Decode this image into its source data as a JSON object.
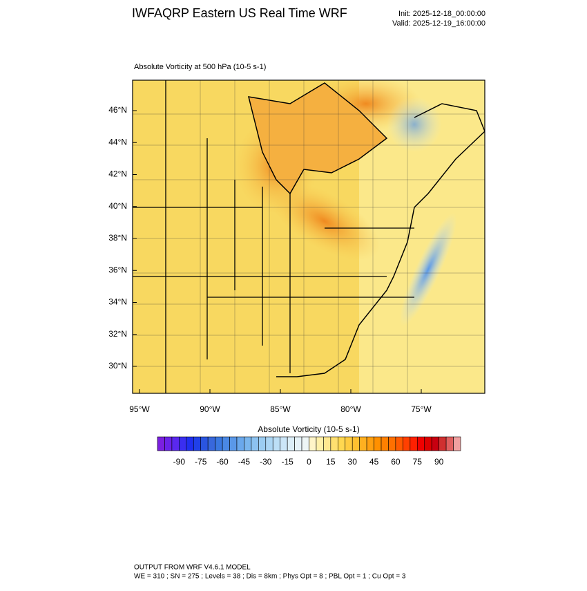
{
  "header": {
    "title": "IWFAQRP Eastern US Real Time WRF",
    "init": "Init: 2025-12-18_00:00:00",
    "valid": "Valid: 2025-12-19_16:00:00"
  },
  "map": {
    "subtitle": "Absolute Vorticity at 500 hPa   (10-5 s-1)",
    "lat_labels": [
      "46°N",
      "44°N",
      "42°N",
      "40°N",
      "38°N",
      "36°N",
      "34°N",
      "32°N",
      "30°N"
    ],
    "lon_labels": [
      "95°W",
      "90°W",
      "85°W",
      "80°W",
      "75°W"
    ]
  },
  "colorbar": {
    "title": "Absolute Vorticity  (10-5 s-1)",
    "labels": [
      -90,
      -75,
      -60,
      -45,
      -30,
      -15,
      0,
      15,
      30,
      45,
      60,
      75,
      90
    ],
    "colors": [
      "#7b1fe0",
      "#6a22e8",
      "#5a28ee",
      "#3a2ef0",
      "#1f2fef",
      "#2040e8",
      "#2a55e0",
      "#3868dc",
      "#3a78e0",
      "#4a88e4",
      "#5a98e8",
      "#6aa8ec",
      "#7ab6ee",
      "#8cc2f0",
      "#9ccdf2",
      "#acd6f4",
      "#bcdff6",
      "#cce6f8",
      "#dceef8",
      "#e6f2f8",
      "#eef6f6",
      "#fff5c8",
      "#fff0a8",
      "#ffe890",
      "#ffe070",
      "#ffd850",
      "#ffcc40",
      "#ffc030",
      "#ffb020",
      "#ffa010",
      "#ff9000",
      "#ff8000",
      "#ff7000",
      "#ff5a00",
      "#ff4000",
      "#ff2000",
      "#f00000",
      "#dd0000",
      "#c80010",
      "#d03030",
      "#e06060",
      "#f0a0a0"
    ]
  },
  "footer": {
    "line1": "OUTPUT FROM WRF V4.6.1 MODEL",
    "line2": "WE = 310 ; SN = 275 ; Levels = 38 ; Dis = 8km ; Phys Opt = 8 ; PBL Opt = 1 ; Cu Opt = 3"
  }
}
